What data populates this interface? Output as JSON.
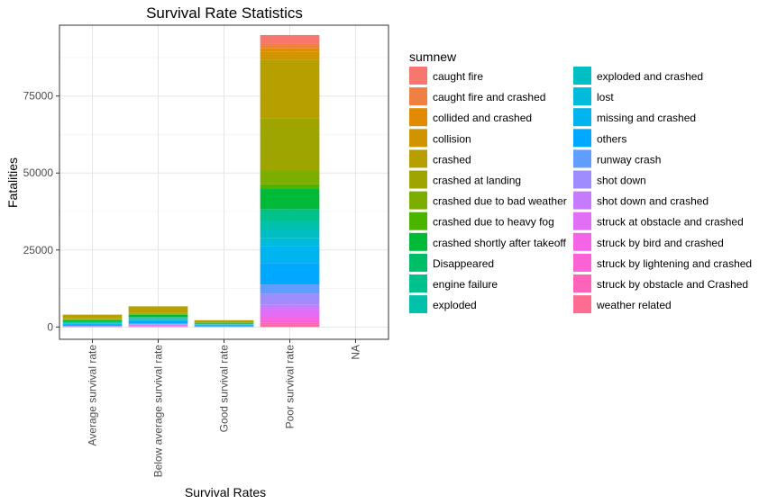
{
  "chart_data": {
    "type": "bar",
    "stacked": true,
    "title": "Survival Rate Statistics",
    "xlabel": "Survival Rates",
    "ylabel": "Fatalities",
    "ylim": [
      -4000,
      98000
    ],
    "yticks": [
      0,
      25000,
      50000,
      75000
    ],
    "grid": true,
    "legend_title": "sumnew",
    "legend_position": "right",
    "categories": [
      "Average survival rate",
      "Below average survival rate",
      "Good survival rate",
      "Poor survival rate",
      "NA"
    ],
    "series": [
      {
        "name": "caught fire",
        "color": "#F8766D",
        "values": [
          0,
          0,
          0,
          2800,
          0
        ]
      },
      {
        "name": "caught fire and crashed",
        "color": "#EE8044",
        "values": [
          0,
          0,
          0,
          1500,
          0
        ]
      },
      {
        "name": "collided and crashed",
        "color": "#E08B00",
        "values": [
          0,
          0,
          0,
          1200,
          0
        ]
      },
      {
        "name": "collision",
        "color": "#CF9400",
        "values": [
          0,
          0,
          0,
          2500,
          0
        ]
      },
      {
        "name": "crashed",
        "color": "#B79F00",
        "values": [
          1200,
          2000,
          500,
          19000,
          0
        ]
      },
      {
        "name": "crashed at landing",
        "color": "#9FA500",
        "values": [
          300,
          300,
          200,
          17000,
          0
        ]
      },
      {
        "name": "crashed due to bad weather",
        "color": "#7CAE00",
        "values": [
          200,
          300,
          100,
          4500,
          0
        ]
      },
      {
        "name": "crashed due to heavy fog",
        "color": "#4BB400",
        "values": [
          100,
          200,
          50,
          1500,
          0
        ]
      },
      {
        "name": "crashed shortly after takeoff",
        "color": "#00BA38",
        "values": [
          500,
          700,
          300,
          6500,
          0
        ]
      },
      {
        "name": "Disappeared",
        "color": "#00BE67",
        "values": [
          100,
          100,
          50,
          500,
          0
        ]
      },
      {
        "name": "engine failure",
        "color": "#00C08B",
        "values": [
          200,
          300,
          100,
          3500,
          0
        ]
      },
      {
        "name": "exploded",
        "color": "#00C1A9",
        "values": [
          100,
          100,
          50,
          2500,
          0
        ]
      },
      {
        "name": "exploded and crashed",
        "color": "#00BFC4",
        "values": [
          100,
          200,
          50,
          3000,
          0
        ]
      },
      {
        "name": "lost",
        "color": "#00BBDC",
        "values": [
          100,
          100,
          50,
          2500,
          0
        ]
      },
      {
        "name": "missing and crashed",
        "color": "#00B4EF",
        "values": [
          300,
          500,
          200,
          5500,
          0
        ]
      },
      {
        "name": "others",
        "color": "#00A9FF",
        "values": [
          400,
          700,
          300,
          7000,
          0
        ]
      },
      {
        "name": "runway crash",
        "color": "#619CFF",
        "values": [
          100,
          300,
          100,
          3000,
          0
        ]
      },
      {
        "name": "shot down",
        "color": "#9F8CFF",
        "values": [
          100,
          200,
          50,
          3500,
          0
        ]
      },
      {
        "name": "shot down and crashed",
        "color": "#C77CFF",
        "values": [
          100,
          200,
          50,
          1500,
          0
        ]
      },
      {
        "name": "struck at obstacle and crashed",
        "color": "#E36EF6",
        "values": [
          100,
          200,
          50,
          2500,
          0
        ]
      },
      {
        "name": "struck by bird and crashed",
        "color": "#F365E6",
        "values": [
          0,
          100,
          0,
          1000,
          0
        ]
      },
      {
        "name": "struck by lightening and crashed",
        "color": "#FC61D5",
        "values": [
          0,
          100,
          0,
          1000,
          0
        ]
      },
      {
        "name": "struck by obstacle and Crashed",
        "color": "#FF63B9",
        "values": [
          0,
          0,
          0,
          500,
          0
        ]
      },
      {
        "name": "weather related",
        "color": "#FF6C91",
        "values": [
          0,
          100,
          0,
          800,
          0
        ]
      }
    ]
  }
}
